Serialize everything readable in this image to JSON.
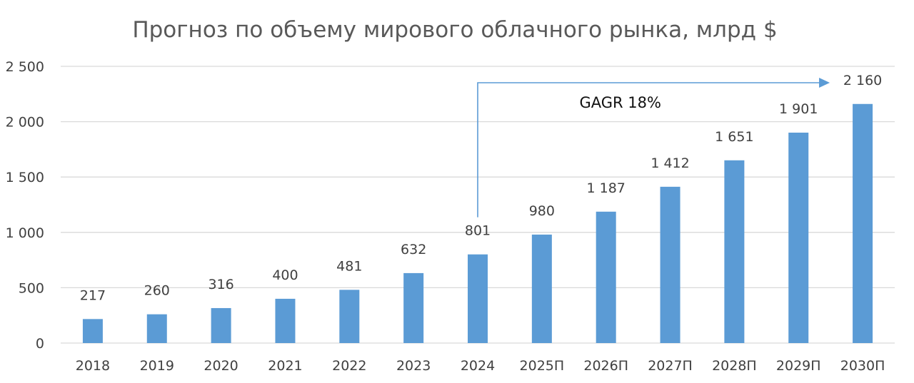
{
  "chart_data": {
    "type": "bar",
    "title": "Прогноз по объему мирового облачного рынка, млрд $",
    "categories": [
      "2018",
      "2019",
      "2020",
      "2021",
      "2022",
      "2023",
      "2024",
      "2025П",
      "2026П",
      "2027П",
      "2028П",
      "2029П",
      "2030П"
    ],
    "values": [
      217,
      260,
      316,
      400,
      481,
      632,
      801,
      980,
      1187,
      1412,
      1651,
      1901,
      2160
    ],
    "data_labels": [
      "217",
      "260",
      "316",
      "400",
      "481",
      "632",
      "801",
      "980",
      "1 187",
      "1 412",
      "1 651",
      "1 901",
      "2 160"
    ],
    "ylim": [
      0,
      2500
    ],
    "yticks": [
      0,
      500,
      1000,
      1500,
      2000,
      2500
    ],
    "ytick_labels": [
      "0",
      "500",
      "1 000",
      "1 500",
      "2 000",
      "2 500"
    ],
    "grid": true,
    "bar_color": "#5b9bd5",
    "annotation": {
      "text": "GAGR 18%",
      "from_category": "2024",
      "to_category": "2030П",
      "color": "#5b9bd5"
    }
  }
}
